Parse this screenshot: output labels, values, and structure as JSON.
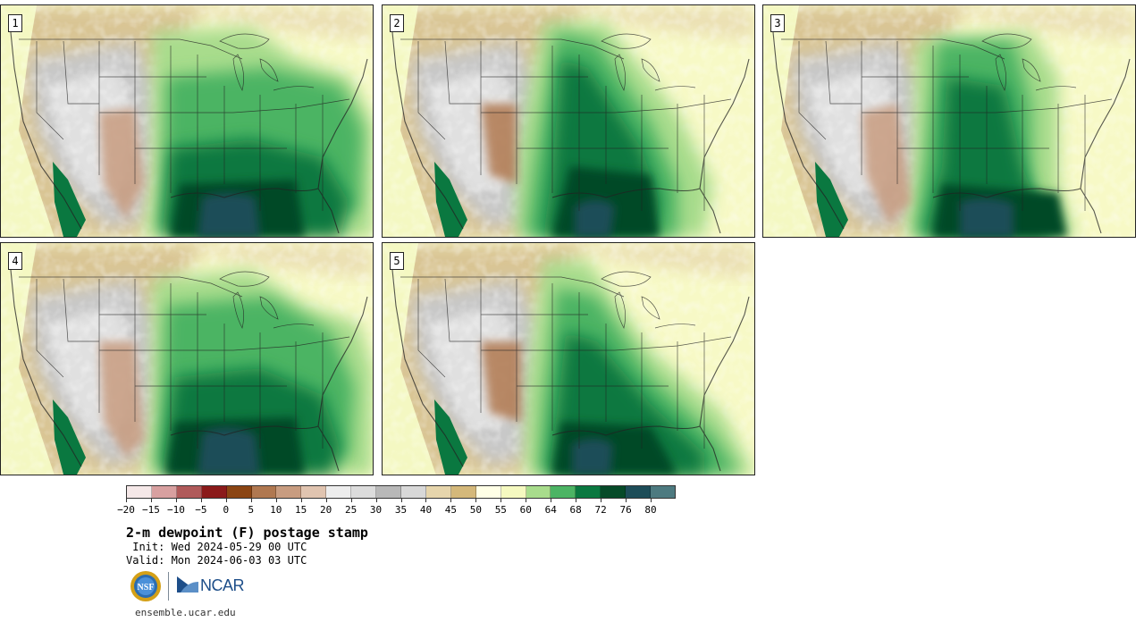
{
  "panels": [
    {
      "number": "1"
    },
    {
      "number": "2"
    },
    {
      "number": "3"
    },
    {
      "number": "4"
    },
    {
      "number": "5"
    }
  ],
  "colorbar": {
    "colors": [
      "#f5e8e8",
      "#d8a0a0",
      "#b05a5a",
      "#8b1a1a",
      "#8b4513",
      "#b07850",
      "#c89c80",
      "#e0c4b0",
      "#ededed",
      "#dcdcdc",
      "#b8b8b8",
      "#d8d8d8",
      "#e6d5ac",
      "#d4b87a",
      "#ffffe6",
      "#f5f9c0",
      "#a8dc8c",
      "#4cb464",
      "#0a7840",
      "#064a28",
      "#1d4d58",
      "#4d7a80"
    ],
    "ticks": [
      "−20",
      "−15",
      "−10",
      "−5",
      "0",
      "5",
      "10",
      "15",
      "20",
      "25",
      "30",
      "35",
      "40",
      "45",
      "50",
      "55",
      "60",
      "64",
      "68",
      "72",
      "76",
      "80"
    ]
  },
  "title": "2-m dewpoint (F) postage stamp",
  "init": " Init: Wed 2024-05-29 00 UTC",
  "valid": "Valid: Mon 2024-06-03 03 UTC",
  "logos": {
    "ncar_text": "NCAR",
    "nsf_text": "NSF"
  },
  "footer_url": "ensemble.ucar.edu"
}
